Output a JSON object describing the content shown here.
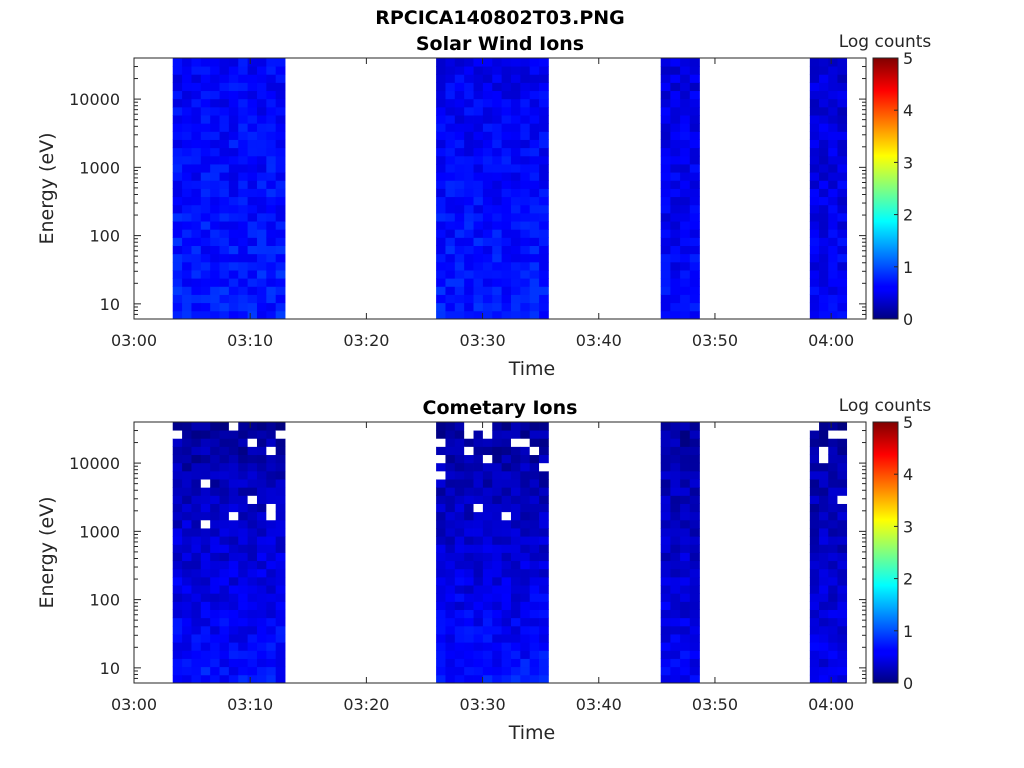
{
  "figure": {
    "title": "RPCICA140802T03.PNG"
  },
  "chart_data": [
    {
      "type": "heatmap",
      "subtitle": "Solar Wind Ions",
      "xlabel": "Time",
      "ylabel": "Energy (eV)",
      "xlim": [
        "03:00",
        "04:03"
      ],
      "xticks": [
        "03:00",
        "03:10",
        "03:20",
        "03:30",
        "03:40",
        "03:50",
        "04:00"
      ],
      "ylim": [
        6,
        40000
      ],
      "yscale": "log",
      "yticks": [
        {
          "value": 10,
          "label": "10"
        },
        {
          "value": 100,
          "label": "100"
        },
        {
          "value": 1000,
          "label": "1000"
        },
        {
          "value": 10000,
          "label": "10000"
        }
      ],
      "colorbar": {
        "label": "Log counts",
        "min": 0,
        "max": 5,
        "ticks": [
          "0",
          "1",
          "2",
          "3",
          "4",
          "5"
        ],
        "colormap": "jet"
      },
      "data_intervals": [
        {
          "start": "03:03:20",
          "end": "03:13:00",
          "level_low_energy": 0.75,
          "level_high_energy": 0.6
        },
        {
          "start": "03:26:00",
          "end": "03:35:40",
          "level_low_energy": 0.75,
          "level_high_energy": 0.55
        },
        {
          "start": "03:45:20",
          "end": "03:48:40",
          "level_low_energy": 0.65,
          "level_high_energy": 0.45
        },
        {
          "start": "03:58:10",
          "end": "04:01:20",
          "level_low_energy": 0.6,
          "level_high_energy": 0.4
        }
      ]
    },
    {
      "type": "heatmap",
      "subtitle": "Cometary Ions",
      "xlabel": "Time",
      "ylabel": "Energy (eV)",
      "xlim": [
        "03:00",
        "04:03"
      ],
      "xticks": [
        "03:00",
        "03:10",
        "03:20",
        "03:30",
        "03:40",
        "03:50",
        "04:00"
      ],
      "ylim": [
        6,
        40000
      ],
      "yscale": "log",
      "yticks": [
        {
          "value": 10,
          "label": "10"
        },
        {
          "value": 100,
          "label": "100"
        },
        {
          "value": 1000,
          "label": "1000"
        },
        {
          "value": 10000,
          "label": "10000"
        }
      ],
      "colorbar": {
        "label": "Log counts",
        "min": 0,
        "max": 5,
        "ticks": [
          "0",
          "1",
          "2",
          "3",
          "4",
          "5"
        ],
        "colormap": "jet"
      },
      "data_intervals": [
        {
          "start": "03:03:20",
          "end": "03:13:00",
          "level_low_energy": 0.7,
          "level_high_energy": 0.15
        },
        {
          "start": "03:26:00",
          "end": "03:35:40",
          "level_low_energy": 0.7,
          "level_high_energy": 0.15
        },
        {
          "start": "03:45:20",
          "end": "03:48:40",
          "level_low_energy": 0.6,
          "level_high_energy": 0.15
        },
        {
          "start": "03:58:10",
          "end": "04:01:20",
          "level_low_energy": 0.55,
          "level_high_energy": 0.15
        }
      ]
    }
  ]
}
